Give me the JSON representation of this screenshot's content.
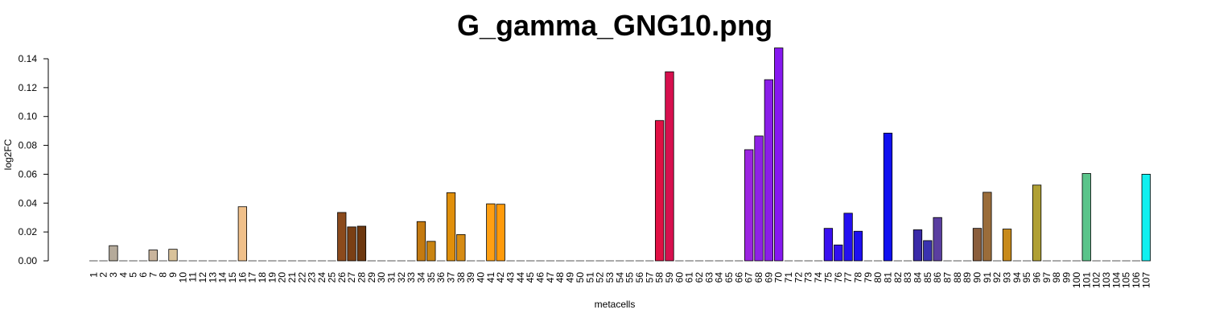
{
  "chart_data": {
    "type": "bar",
    "title": "G_gamma_GNG10.png",
    "xlabel": "metacells",
    "ylabel": "log2FC",
    "ylim": [
      0,
      0.14
    ],
    "yticks": [
      "0.00",
      "0.02",
      "0.04",
      "0.06",
      "0.08",
      "0.10",
      "0.12",
      "0.14"
    ],
    "grid": false,
    "categories": [
      "1",
      "2",
      "3",
      "4",
      "5",
      "6",
      "7",
      "8",
      "9",
      "10",
      "11",
      "12",
      "13",
      "14",
      "15",
      "16",
      "17",
      "18",
      "19",
      "20",
      "21",
      "22",
      "23",
      "24",
      "25",
      "26",
      "27",
      "28",
      "29",
      "30",
      "31",
      "32",
      "33",
      "34",
      "35",
      "36",
      "37",
      "38",
      "39",
      "40",
      "41",
      "42",
      "43",
      "44",
      "45",
      "46",
      "47",
      "48",
      "49",
      "50",
      "51",
      "52",
      "53",
      "54",
      "55",
      "56",
      "57",
      "58",
      "59",
      "60",
      "61",
      "62",
      "63",
      "64",
      "65",
      "66",
      "67",
      "68",
      "69",
      "70",
      "71",
      "72",
      "73",
      "74",
      "75",
      "76",
      "77",
      "78",
      "79",
      "80",
      "81",
      "82",
      "83",
      "84",
      "85",
      "86",
      "87",
      "88",
      "89",
      "90",
      "91",
      "92",
      "93",
      "94",
      "95",
      "96",
      "97",
      "98",
      "99",
      "100",
      "101",
      "102",
      "103",
      "104",
      "105",
      "106",
      "107"
    ],
    "values": [
      0,
      0,
      0.0105,
      0,
      0,
      0,
      0.0075,
      0,
      0.008,
      0,
      0,
      0,
      0,
      0,
      0,
      0.0375,
      0,
      0,
      0,
      0,
      0,
      0,
      0,
      0,
      0,
      0.0335,
      0.0235,
      0.024,
      0,
      0,
      0,
      0,
      0,
      0.0272,
      0.0135,
      0,
      0.0472,
      0.0182,
      0,
      0,
      0.0395,
      0.0392,
      0,
      0,
      0,
      0,
      0,
      0,
      0,
      0,
      0,
      0,
      0,
      0,
      0,
      0,
      0,
      0.0972,
      0.131,
      0,
      0,
      0,
      0,
      0,
      0,
      0,
      0.077,
      0.0865,
      0.1255,
      0.1475,
      0,
      0,
      0,
      0,
      0.0225,
      0.011,
      0.033,
      0.0205,
      0,
      0,
      0.0885,
      0,
      0,
      0.0215,
      0.014,
      0.03,
      0,
      0,
      0,
      0.0225,
      0.0475,
      0,
      0.022,
      0,
      0,
      0.0525,
      0,
      0,
      0,
      0,
      0.0605,
      0,
      0,
      0,
      0,
      0,
      0.06
    ],
    "colors": [
      "#808080",
      "#808080",
      "#b5aa9a",
      "#808080",
      "#808080",
      "#808080",
      "#c9b49c",
      "#808080",
      "#d9c29a",
      "#808080",
      "#808080",
      "#808080",
      "#808080",
      "#808080",
      "#808080",
      "#f0c08a",
      "#808080",
      "#808080",
      "#808080",
      "#808080",
      "#808080",
      "#808080",
      "#808080",
      "#808080",
      "#808080",
      "#8b4a1c",
      "#7a3f14",
      "#6e380f",
      "#808080",
      "#808080",
      "#808080",
      "#808080",
      "#808080",
      "#c47a10",
      "#c98412",
      "#808080",
      "#e08f0a",
      "#d68b14",
      "#808080",
      "#808080",
      "#ff9f12",
      "#ff9a0a",
      "#808080",
      "#808080",
      "#808080",
      "#808080",
      "#808080",
      "#808080",
      "#808080",
      "#808080",
      "#808080",
      "#808080",
      "#808080",
      "#808080",
      "#808080",
      "#808080",
      "#808080",
      "#e01044",
      "#d6104e",
      "#808080",
      "#808080",
      "#808080",
      "#808080",
      "#808080",
      "#808080",
      "#808080",
      "#9b24e0",
      "#8e22e6",
      "#8a1ee8",
      "#8618f0",
      "#808080",
      "#808080",
      "#808080",
      "#808080",
      "#3a10f0",
      "#3210f0",
      "#2410f0",
      "#1e10f0",
      "#808080",
      "#808080",
      "#1010f0",
      "#808080",
      "#808080",
      "#3a2aa8",
      "#3a32b0",
      "#5a3ea0",
      "#808080",
      "#808080",
      "#808080",
      "#8b5e3c",
      "#9a6c3a",
      "#808080",
      "#c88a1a",
      "#808080",
      "#808080",
      "#b0a034",
      "#808080",
      "#808080",
      "#808080",
      "#808080",
      "#5ac48a",
      "#808080",
      "#808080",
      "#808080",
      "#808080",
      "#808080",
      "#10f0f0"
    ]
  }
}
